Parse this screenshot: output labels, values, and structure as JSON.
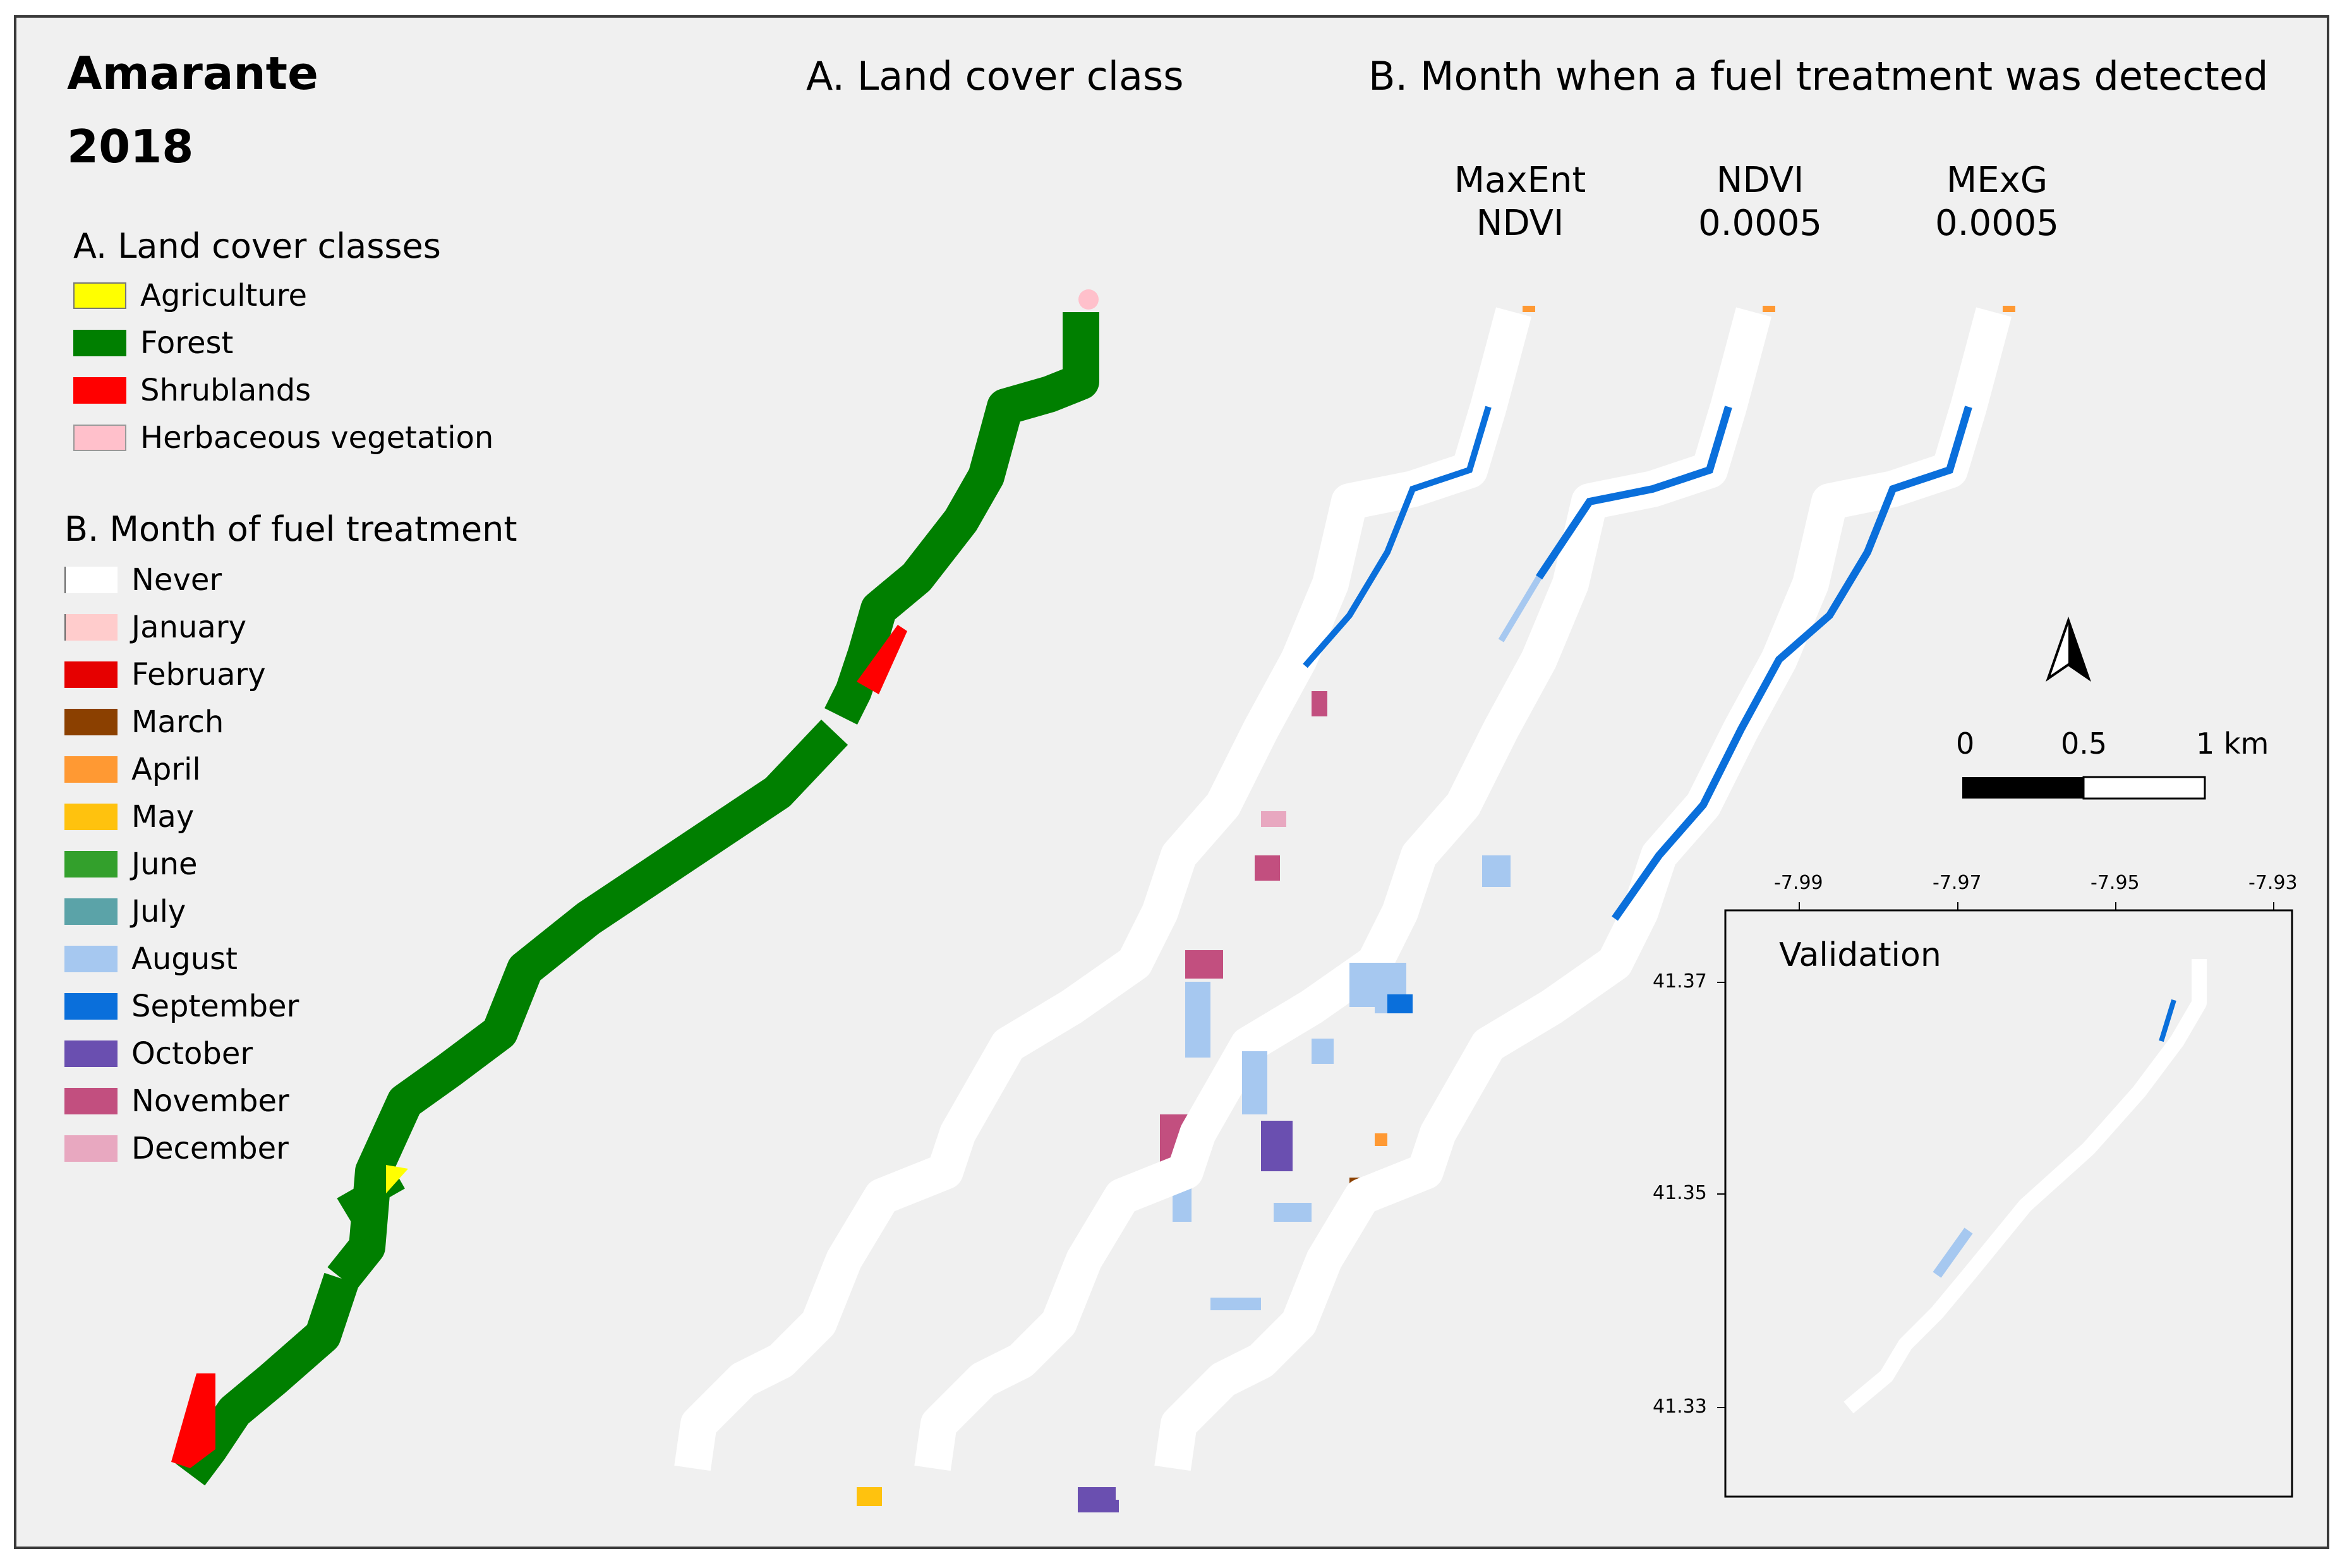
{
  "header": {
    "title_line1": "Amarante",
    "title_line2": "2018",
    "panel_a_title": "A. Land cover class",
    "panel_b_title": "B. Month when a fuel treatment was detected"
  },
  "columns": [
    {
      "line1": "MaxEnt",
      "line2": "NDVI"
    },
    {
      "line1": "NDVI",
      "line2": "0.0005"
    },
    {
      "line1": "MExG",
      "line2": "0.0005"
    }
  ],
  "legend_a": {
    "title": "A. Land cover classes",
    "items": [
      {
        "label": "Agriculture",
        "color": "#ffff00"
      },
      {
        "label": "Forest",
        "color": "#007f00"
      },
      {
        "label": "Shrublands",
        "color": "#ff0000"
      },
      {
        "label": "Herbaceous vegetation",
        "color": "#ffc0cb"
      }
    ]
  },
  "legend_b": {
    "title": "B. Month of fuel treatment",
    "items": [
      {
        "label": "Never",
        "color": "#ffffff"
      },
      {
        "label": "January",
        "color": "#ffcccc"
      },
      {
        "label": "February",
        "color": "#e60000"
      },
      {
        "label": "March",
        "color": "#8b4000"
      },
      {
        "label": "April",
        "color": "#ff9933"
      },
      {
        "label": "May",
        "color": "#ffc20e"
      },
      {
        "label": "June",
        "color": "#33a02c"
      },
      {
        "label": "July",
        "color": "#5ba3a8"
      },
      {
        "label": "August",
        "color": "#a6c8f0"
      },
      {
        "label": "September",
        "color": "#0a6fdb"
      },
      {
        "label": "October",
        "color": "#6a4fb0"
      },
      {
        "label": "November",
        "color": "#c24f7f"
      },
      {
        "label": "December",
        "color": "#e8a8c0"
      }
    ]
  },
  "scale_bar": {
    "labels": [
      "0",
      "0.5",
      "1 km"
    ]
  },
  "north_arrow": {
    "icon": "north-arrow-icon"
  },
  "inset": {
    "title": "Validation",
    "x_ticks": [
      "-7.99",
      "-7.97",
      "-7.95",
      "-7.93"
    ],
    "y_ticks": [
      "41.37",
      "41.35",
      "41.33"
    ]
  }
}
